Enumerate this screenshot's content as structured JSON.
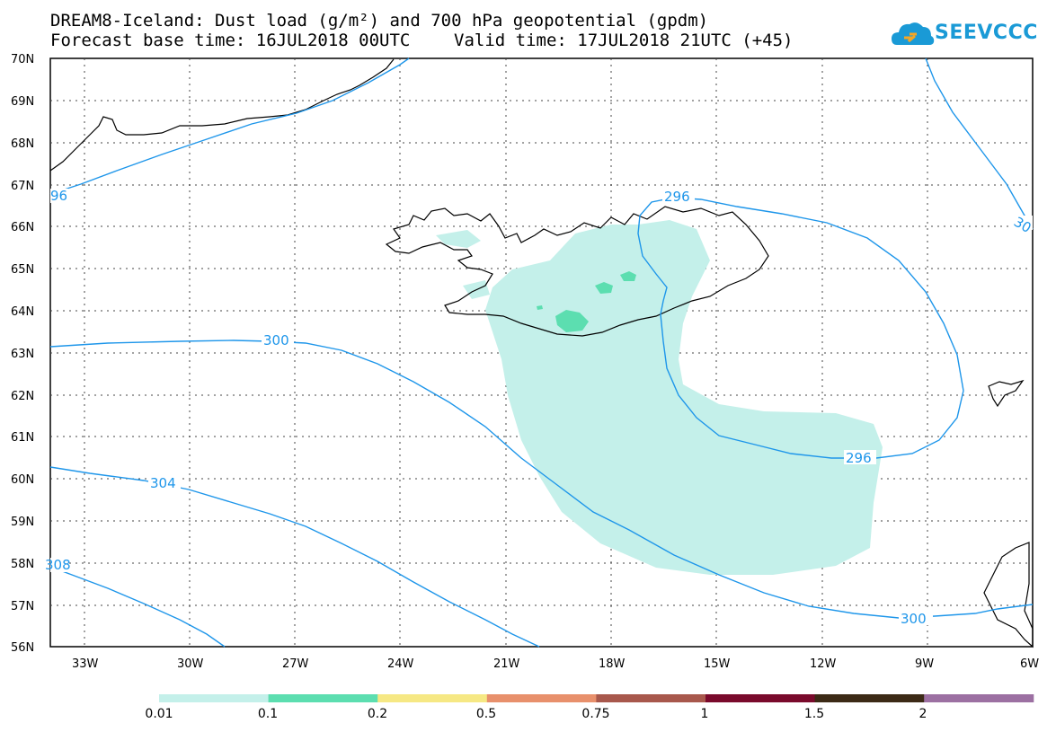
{
  "header": {
    "title": "DREAM8-Iceland: Dust load (g/m²) and 700 hPa geopotential (gpdm)",
    "base_time": "Forecast base time: 16JUL2018 00UTC",
    "valid_time": "Valid time: 17JUL2018 21UTC (+45)"
  },
  "logo": {
    "text": "SEEVCCC",
    "icon": "cloud-icon",
    "color": "#1a9ad6"
  },
  "map": {
    "lon_labels": [
      "33W",
      "30W",
      "27W",
      "24W",
      "21W",
      "18W",
      "15W",
      "12W",
      "9W",
      "6W"
    ],
    "lat_labels": [
      "70N",
      "69N",
      "68N",
      "67N",
      "66N",
      "65N",
      "64N",
      "63N",
      "62N",
      "61N",
      "60N",
      "59N",
      "58N",
      "57N",
      "56N"
    ],
    "contour_color": "#1e96ea",
    "contour_labels": [
      "296",
      "300",
      "304",
      "308",
      "296",
      "30",
      "96",
      "300",
      "296"
    ]
  },
  "colorbar": {
    "colors": [
      "#c4f0ea",
      "#5cdeb0",
      "#f6e884",
      "#e8906c",
      "#a8584c",
      "#7a0a2c",
      "#3c2a16",
      "#9c70a2"
    ],
    "labels": [
      "0.01",
      "0.1",
      "0.2",
      "0.5",
      "0.75",
      "1",
      "1.5",
      "2"
    ]
  }
}
